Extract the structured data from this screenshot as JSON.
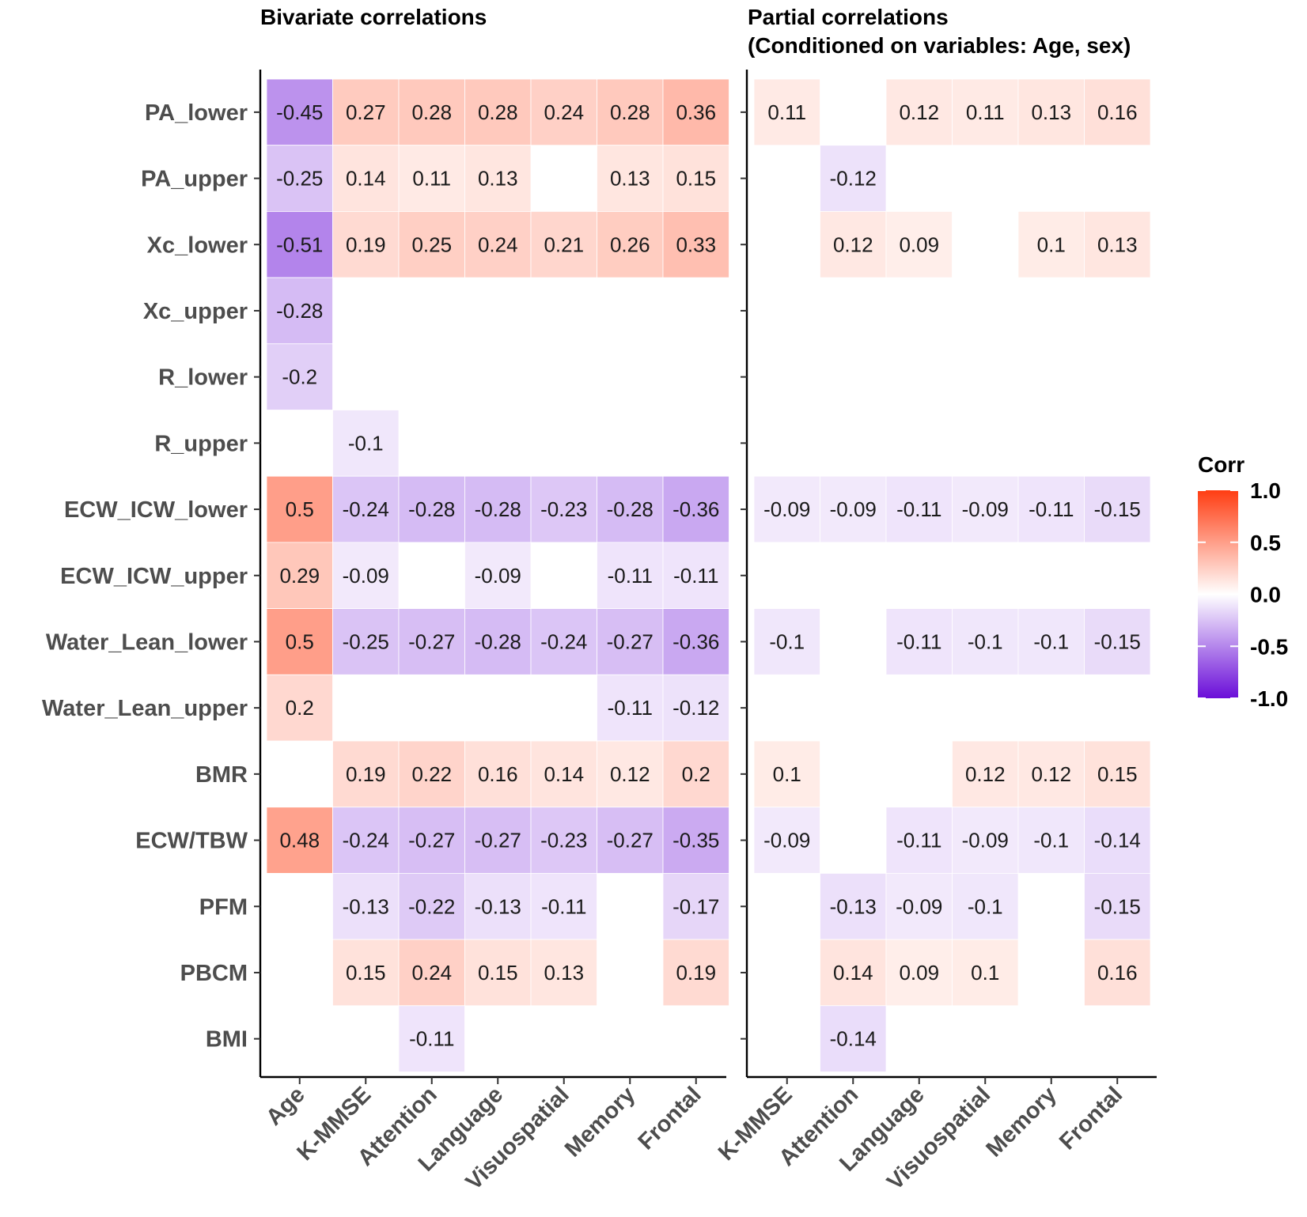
{
  "chart_data": {
    "type": "heatmap",
    "rows": [
      "PA_lower",
      "PA_upper",
      "Xc_lower",
      "Xc_upper",
      "R_lower",
      "R_upper",
      "ECW_ICW_lower",
      "ECW_ICW_upper",
      "Water_Lean_lower",
      "Water_Lean_upper",
      "BMR",
      "ECW/TBW",
      "PFM",
      "PBCM",
      "BMI"
    ],
    "panels": [
      {
        "title": "Bivariate correlations",
        "columns": [
          "Age",
          "K-MMSE",
          "Attention",
          "Language",
          "Visuospatial",
          "Memory",
          "Frontal"
        ],
        "values": [
          [
            -0.45,
            0.27,
            0.28,
            0.28,
            0.24,
            0.28,
            0.36
          ],
          [
            -0.25,
            0.14,
            0.11,
            0.13,
            null,
            0.13,
            0.15
          ],
          [
            -0.51,
            0.19,
            0.25,
            0.24,
            0.21,
            0.26,
            0.33
          ],
          [
            -0.28,
            null,
            null,
            null,
            null,
            null,
            null
          ],
          [
            -0.2,
            null,
            null,
            null,
            null,
            null,
            null
          ],
          [
            null,
            -0.1,
            null,
            null,
            null,
            null,
            null
          ],
          [
            0.5,
            -0.24,
            -0.28,
            -0.28,
            -0.23,
            -0.28,
            -0.36
          ],
          [
            0.29,
            -0.09,
            null,
            -0.09,
            null,
            -0.11,
            -0.11
          ],
          [
            0.5,
            -0.25,
            -0.27,
            -0.28,
            -0.24,
            -0.27,
            -0.36
          ],
          [
            0.2,
            null,
            null,
            null,
            null,
            -0.11,
            -0.12
          ],
          [
            null,
            0.19,
            0.22,
            0.16,
            0.14,
            0.12,
            0.2
          ],
          [
            0.48,
            -0.24,
            -0.27,
            -0.27,
            -0.23,
            -0.27,
            -0.35
          ],
          [
            null,
            -0.13,
            -0.22,
            -0.13,
            -0.11,
            null,
            -0.17
          ],
          [
            null,
            0.15,
            0.24,
            0.15,
            0.13,
            null,
            0.19
          ],
          [
            null,
            null,
            -0.11,
            null,
            null,
            null,
            null
          ]
        ]
      },
      {
        "title": "Partial correlations",
        "subtitle": "(Conditioned on variables: Age, sex)",
        "columns": [
          "K-MMSE",
          "Attention",
          "Language",
          "Visuospatial",
          "Memory",
          "Frontal"
        ],
        "values": [
          [
            0.11,
            null,
            0.12,
            0.11,
            0.13,
            0.16
          ],
          [
            null,
            -0.12,
            null,
            null,
            null,
            null
          ],
          [
            null,
            0.12,
            0.09,
            null,
            0.1,
            0.13
          ],
          [
            null,
            null,
            null,
            null,
            null,
            null
          ],
          [
            null,
            null,
            null,
            null,
            null,
            null
          ],
          [
            null,
            null,
            null,
            null,
            null,
            null
          ],
          [
            -0.09,
            -0.09,
            -0.11,
            -0.09,
            -0.11,
            -0.15
          ],
          [
            null,
            null,
            null,
            null,
            null,
            null
          ],
          [
            -0.1,
            null,
            -0.11,
            -0.1,
            -0.1,
            -0.15
          ],
          [
            null,
            null,
            null,
            null,
            null,
            null
          ],
          [
            0.1,
            null,
            null,
            0.12,
            0.12,
            0.15
          ],
          [
            -0.09,
            null,
            -0.11,
            -0.09,
            -0.1,
            -0.14
          ],
          [
            null,
            -0.13,
            -0.09,
            -0.1,
            null,
            -0.15
          ],
          [
            null,
            0.14,
            0.09,
            0.1,
            null,
            0.16
          ],
          [
            null,
            -0.14,
            null,
            null,
            null,
            null
          ]
        ]
      }
    ],
    "legend": {
      "title": "Corr",
      "range": [
        -1.0,
        1.0
      ],
      "ticks": [
        "1.0",
        "0.5",
        "0.0",
        "-0.5",
        "-1.0"
      ],
      "tick_values": [
        1.0,
        0.5,
        0.0,
        -0.5,
        -1.0
      ],
      "colors": {
        "low": "#6a0dd8",
        "mid": "#ffffff",
        "high": "#ff3d12"
      }
    }
  }
}
